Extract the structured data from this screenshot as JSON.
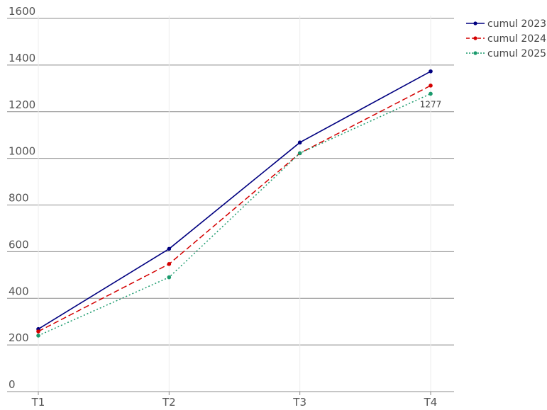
{
  "chart_data": {
    "type": "line",
    "title": "",
    "xlabel": "",
    "ylabel": "",
    "categories": [
      "T1",
      "T2",
      "T3",
      "T4"
    ],
    "ylim": [
      0,
      1600
    ],
    "yticks": [
      0,
      200,
      400,
      600,
      800,
      1000,
      1200,
      1400,
      1600
    ],
    "yticklabels": [
      "0",
      "200",
      "400",
      "600",
      "800",
      "1000",
      "1200",
      "1400",
      "1600"
    ],
    "grid": true,
    "legend_position": "top-right",
    "series": [
      {
        "name": "cumul 2023",
        "values": [
          268,
          612,
          1068,
          1373
        ],
        "color": "#000080",
        "dash": "solid"
      },
      {
        "name": "cumul 2024",
        "values": [
          258,
          547,
          1022,
          1312
        ],
        "color": "#d40000",
        "dash": "dashed"
      },
      {
        "name": "cumul 2025",
        "values": [
          240,
          490,
          1022,
          1277
        ],
        "color": "#1a9a6c",
        "dash": "dotted"
      }
    ],
    "annotations": [
      {
        "series": 2,
        "index": 3,
        "text": "1277"
      }
    ]
  }
}
